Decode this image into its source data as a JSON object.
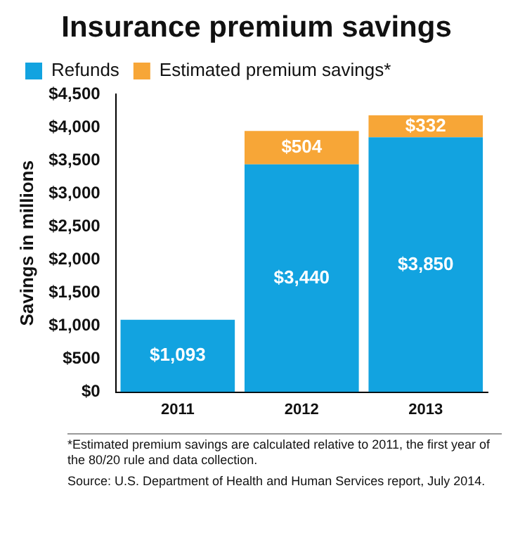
{
  "chart_data": {
    "type": "bar",
    "title": "Insurance premium savings",
    "ylabel": "Savings in millions",
    "categories": [
      "2011",
      "2012",
      "2013"
    ],
    "stacked": true,
    "series": [
      {
        "name": "Refunds",
        "color": "#12a3e0",
        "values": [
          1093,
          3440,
          3850
        ],
        "value_labels": [
          "$1,093",
          "$3,440",
          "$3,850"
        ]
      },
      {
        "name": "Estimated premium savings*",
        "color": "#f7a637",
        "values": [
          null,
          504,
          332
        ],
        "value_labels": [
          null,
          "$504",
          "$332"
        ]
      }
    ],
    "ylim": [
      0,
      4500
    ],
    "yticks": [
      {
        "value": 0,
        "label": "$0"
      },
      {
        "value": 500,
        "label": "$500"
      },
      {
        "value": 1000,
        "label": "$1,000"
      },
      {
        "value": 1500,
        "label": "$1,500"
      },
      {
        "value": 2000,
        "label": "$2,000"
      },
      {
        "value": 2500,
        "label": "$2,500"
      },
      {
        "value": 3000,
        "label": "$3,000"
      },
      {
        "value": 3500,
        "label": "$3,500"
      },
      {
        "value": 4000,
        "label": "$4,000"
      },
      {
        "value": 4500,
        "label": "$4,500"
      }
    ],
    "grid": false,
    "legend": "top left",
    "annotations": [
      "*Estimated premium savings are calculated relative to 2011, the first year of the 80/20 rule and data collection.",
      "Source: U.S. Department of Health and Human Services report, July 2014."
    ]
  }
}
